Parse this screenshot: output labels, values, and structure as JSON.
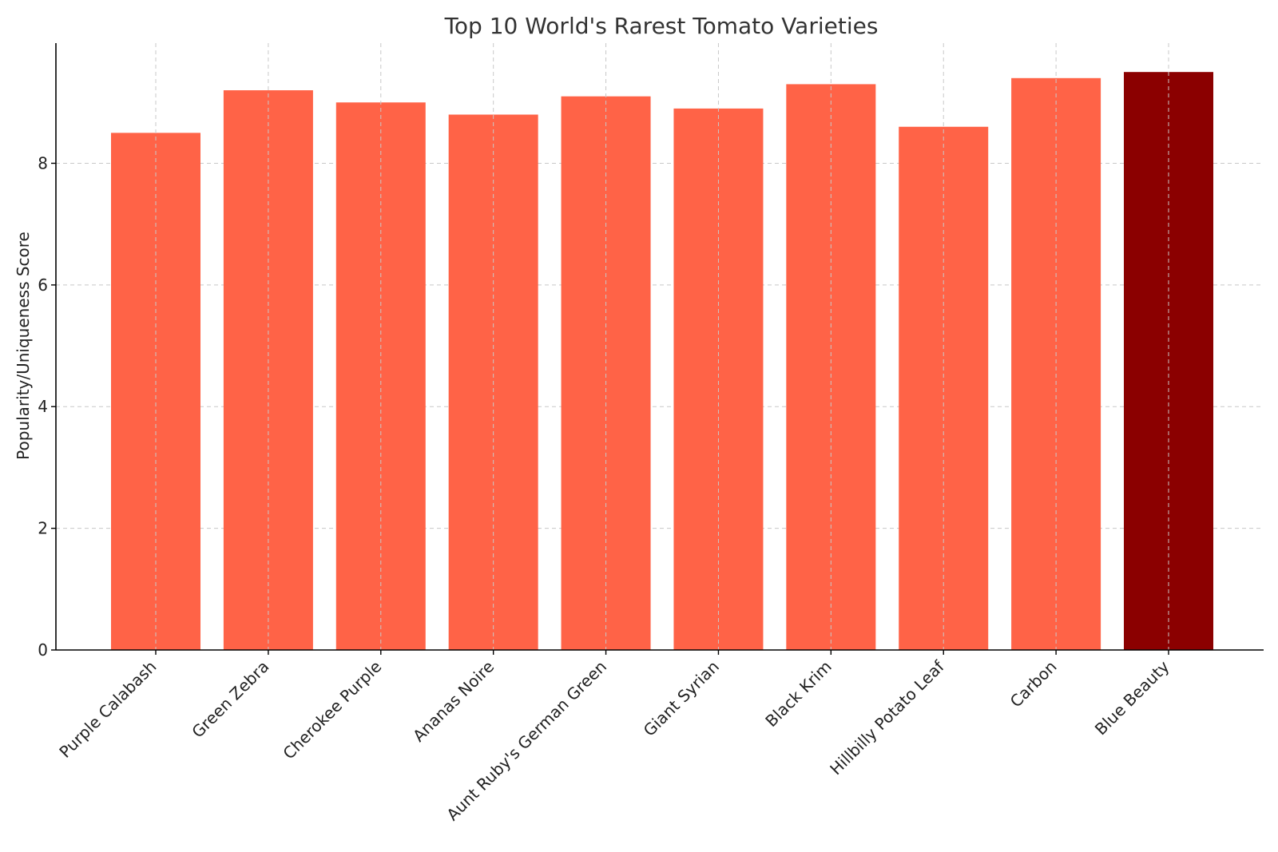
{
  "chart_data": {
    "type": "bar",
    "title": "Top 10 World's Rarest Tomato Varieties",
    "xlabel": "",
    "ylabel": "Popularity/Uniqueness Score",
    "categories": [
      "Purple Calabash",
      "Green Zebra",
      "Cherokee Purple",
      "Ananas Noire",
      "Aunt Ruby's German Green",
      "Giant Syrian",
      "Black Krim",
      "Hillbilly Potato Leaf",
      "Carbon",
      "Blue Beauty"
    ],
    "values": [
      8.5,
      9.2,
      9.0,
      8.8,
      9.1,
      8.9,
      9.3,
      8.6,
      9.4,
      9.5
    ],
    "ylim": [
      0,
      9.975
    ],
    "yticks": [
      0,
      2,
      4,
      6,
      8
    ],
    "grid": true,
    "colors": {
      "bar": "#ff6347",
      "highlight": "#8b0000"
    },
    "highlight_index": 9
  }
}
